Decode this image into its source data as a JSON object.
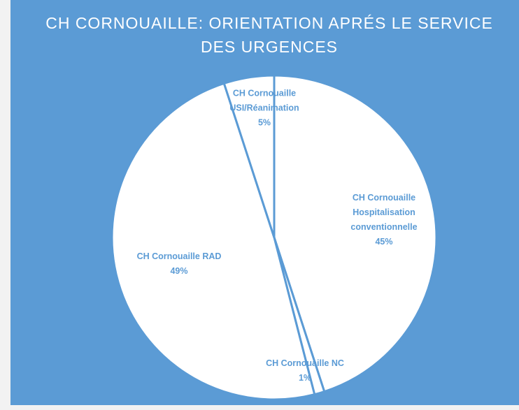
{
  "chart_data": {
    "type": "pie",
    "title": "CH CORNOUAILLE: ORIENTATION APRÉS LE SERVICE DES URGENCES",
    "categories": [
      "CH Cornouaille Hospitalisation conventionnelle",
      "CH Cornouaille NC",
      "CH Cornouaille RAD",
      "CH Cornouaille USI/Réanimation"
    ],
    "values": [
      45,
      1,
      49,
      5
    ],
    "value_labels": [
      "45%",
      "1%",
      "49%",
      "5%"
    ],
    "color": "#ffffff",
    "edge_color": "#5b9bd5",
    "background": "#5b9bd5"
  }
}
